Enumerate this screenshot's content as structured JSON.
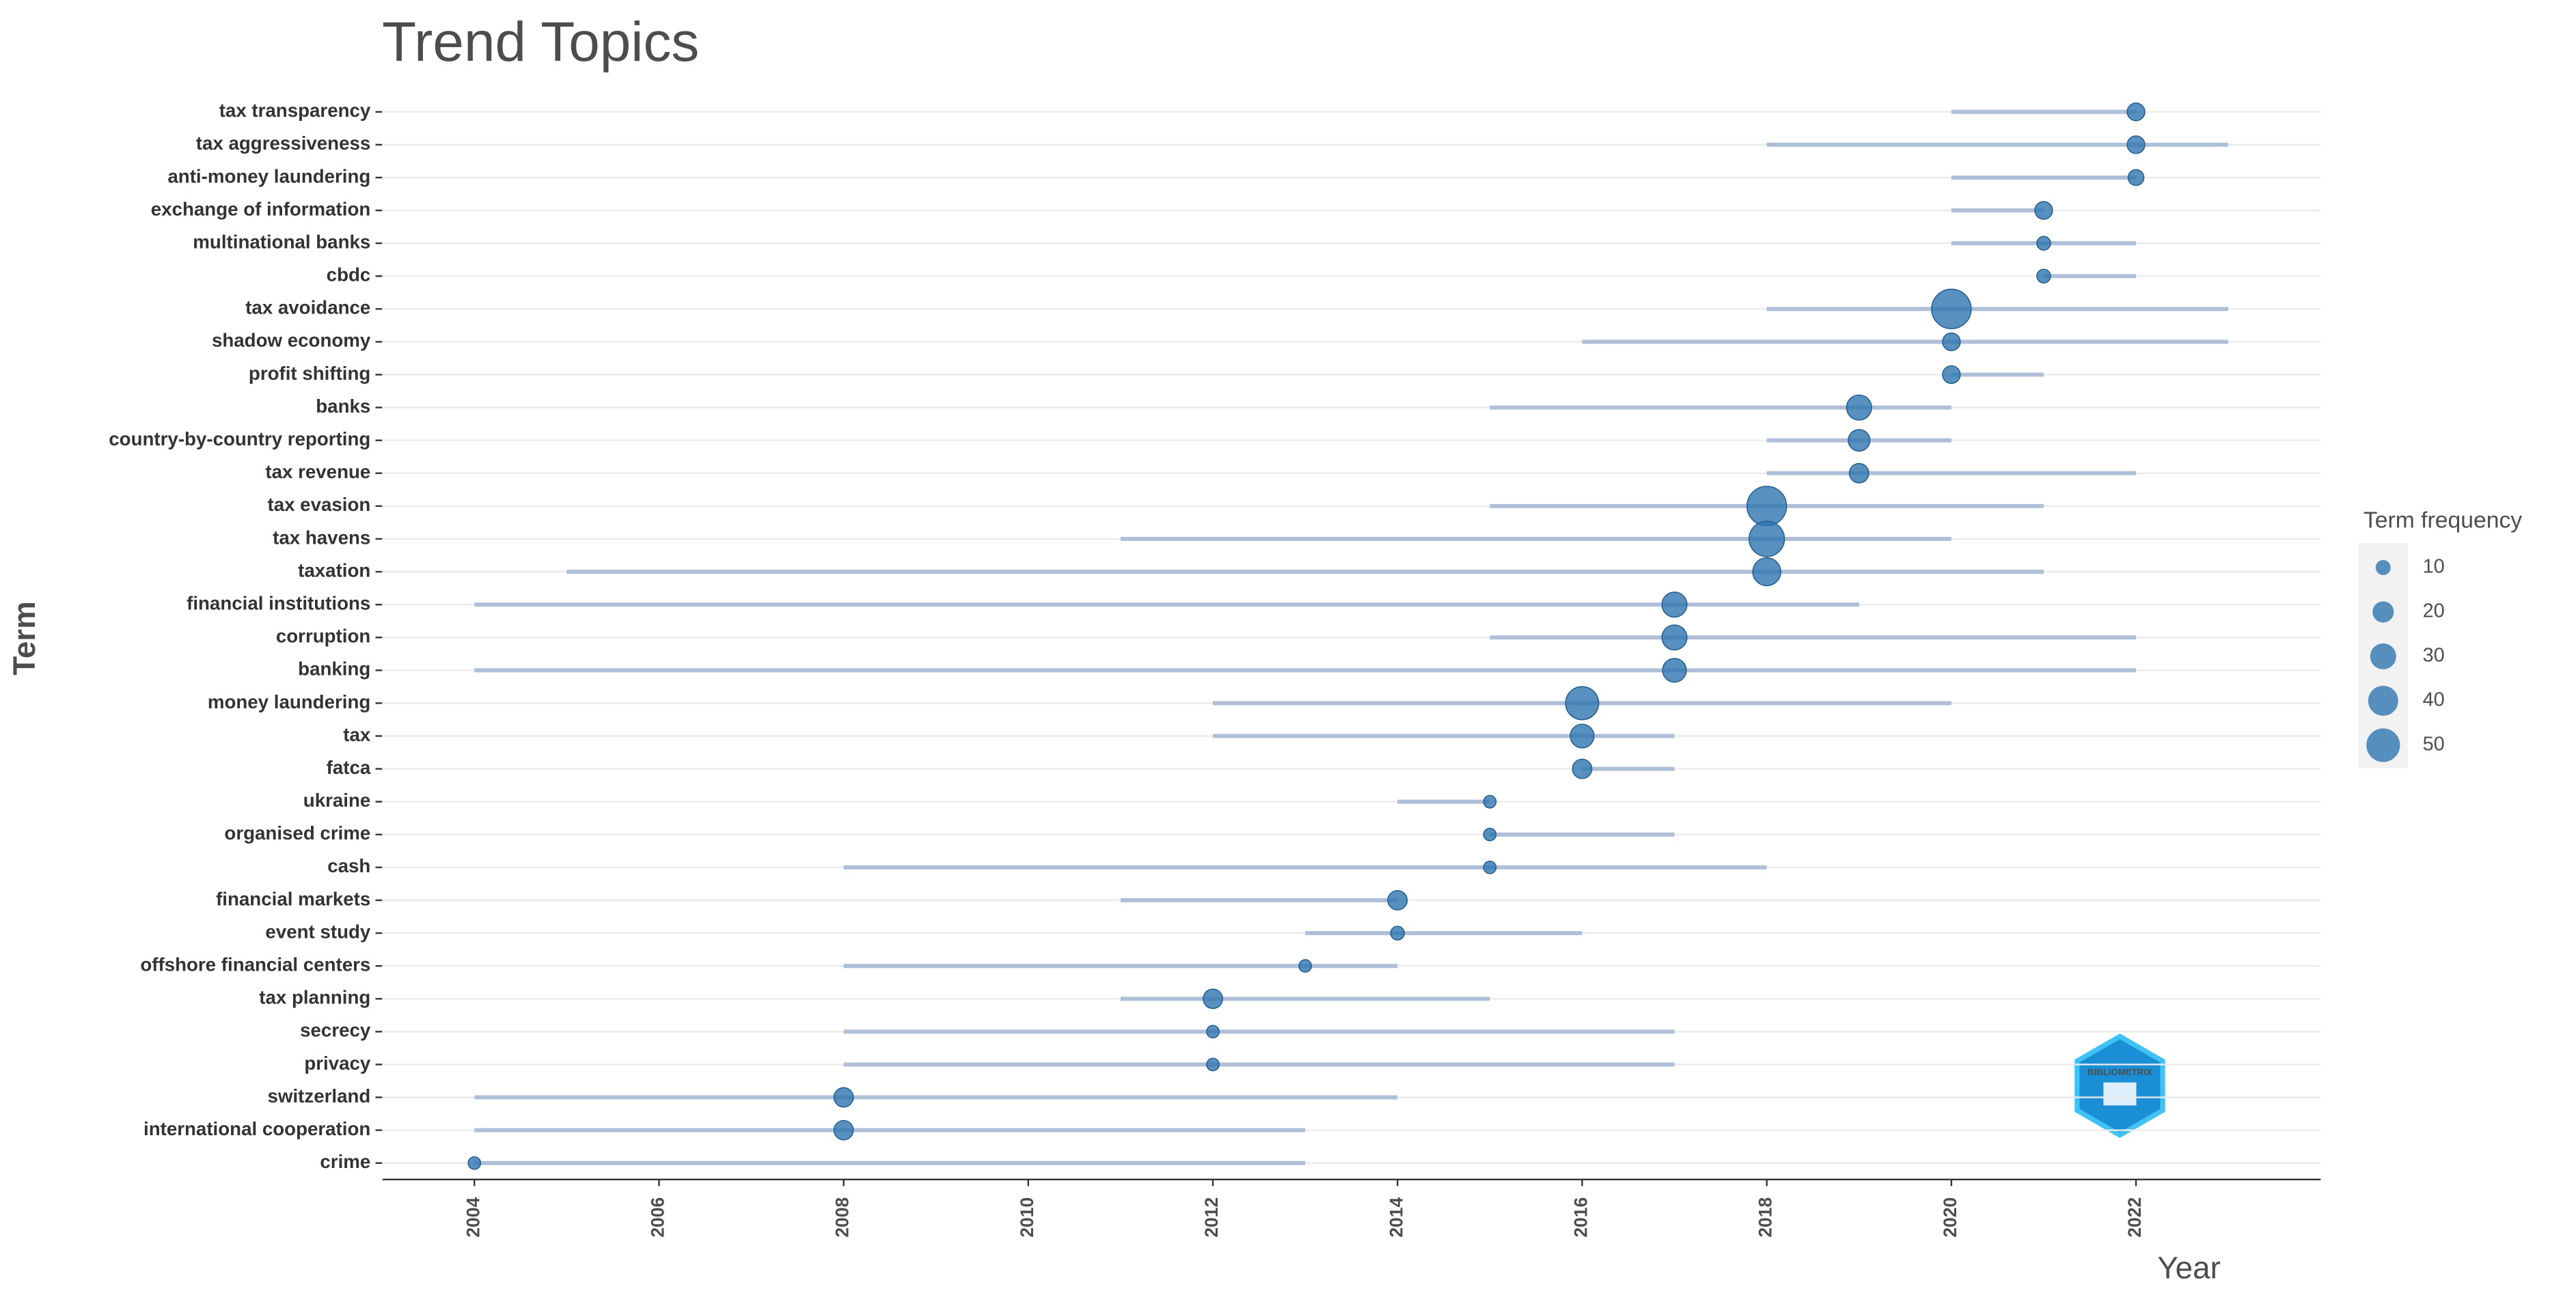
{
  "chart_data": {
    "type": "dumbbell",
    "title": "Trend Topics",
    "x_label": "Year",
    "y_label": "Term",
    "categories": [
      "tax transparency",
      "tax aggressiveness",
      "anti-money laundering",
      "exchange of information",
      "multinational banks",
      "cbdc",
      "tax avoidance",
      "shadow economy",
      "profit shifting",
      "banks",
      "country-by-country reporting",
      "tax revenue",
      "tax evasion",
      "tax havens",
      "taxation",
      "financial institutions",
      "corruption",
      "banking",
      "money laundering",
      "tax",
      "fatca",
      "ukraine",
      "organised crime",
      "cash",
      "financial markets",
      "event study",
      "offshore financial centers",
      "tax planning",
      "secrecy",
      "privacy",
      "switzerland",
      "international cooperation",
      "crime"
    ],
    "start": [
      2020,
      2018,
      2020,
      2020,
      2020,
      2021,
      2018,
      2016,
      2020,
      2015,
      2018,
      2018,
      2015,
      2011,
      2005,
      2004,
      2015,
      2004,
      2012,
      2012,
      2016,
      2014,
      2015,
      2008,
      2011,
      2013,
      2008,
      2011,
      2008,
      2008,
      2004,
      2004,
      2004
    ],
    "end": [
      2022,
      2023,
      2022,
      2021,
      2022,
      2022,
      2023,
      2023,
      2021,
      2020,
      2020,
      2022,
      2021,
      2020,
      2021,
      2019,
      2022,
      2022,
      2020,
      2017,
      2017,
      2015,
      2017,
      2018,
      2014,
      2016,
      2014,
      2015,
      2017,
      2017,
      2014,
      2013,
      2013
    ],
    "values": [
      2022,
      2022,
      2022,
      2021,
      2021,
      2021,
      2020,
      2020,
      2020,
      2019,
      2019,
      2019,
      2018,
      2018,
      2018,
      2017,
      2017,
      2017,
      2016,
      2016,
      2016,
      2015,
      2015,
      2015,
      2014,
      2014,
      2013,
      2012,
      2012,
      2012,
      2008,
      2008,
      2004
    ],
    "sizes": [
      10,
      10,
      8,
      10,
      6,
      6,
      50,
      10,
      10,
      20,
      15,
      12,
      50,
      40,
      25,
      20,
      20,
      18,
      35,
      18,
      12,
      5,
      5,
      5,
      12,
      6,
      5,
      12,
      5,
      5,
      12,
      12,
      5
    ],
    "point_color": "#2e75b0",
    "line_color": "#b0bfd8",
    "xlim": [
      2003,
      2024
    ],
    "xticks": [
      2004,
      2006,
      2008,
      2010,
      2012,
      2014,
      2016,
      2018,
      2020,
      2022
    ],
    "legend_title": "Term frequency",
    "legend_sizes": [
      10,
      20,
      30,
      40,
      50
    ],
    "legend_position": "right",
    "grid": true,
    "logo_text": "BIBLIOMETRIX"
  }
}
